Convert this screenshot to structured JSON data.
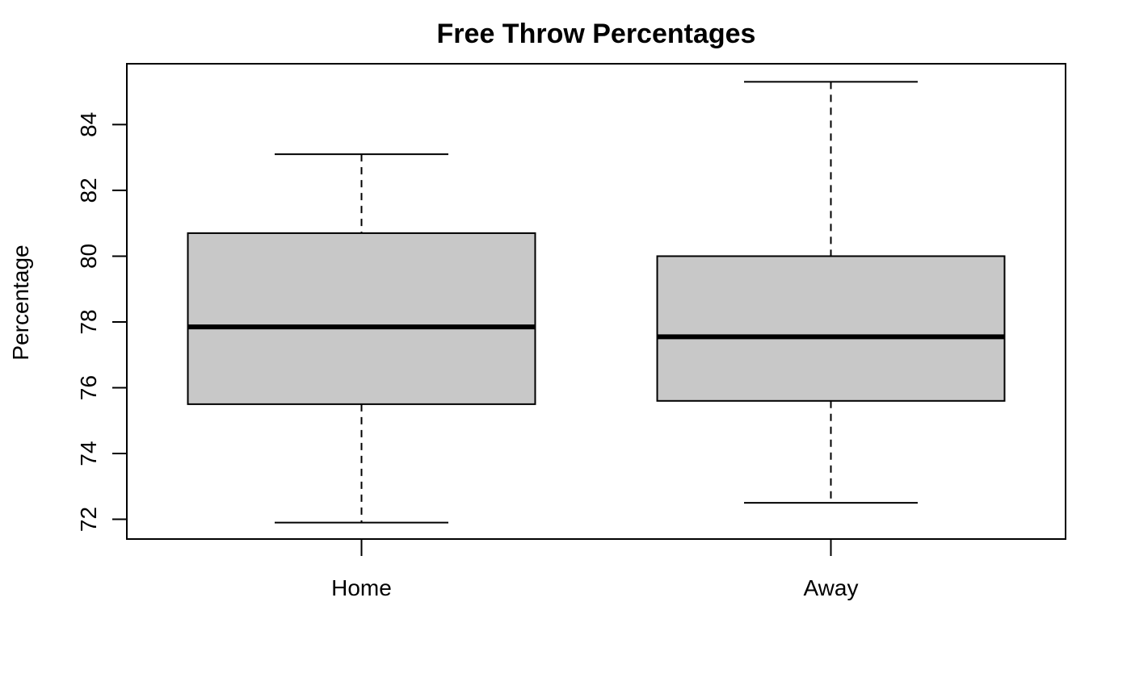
{
  "chart_data": {
    "type": "boxplot",
    "title": "Free Throw Percentages",
    "xlabel": "",
    "ylabel": "Percentage",
    "categories": [
      "Home",
      "Away"
    ],
    "series": [
      {
        "category": "Home",
        "min": 71.9,
        "q1": 75.5,
        "median": 77.85,
        "q3": 80.7,
        "max": 83.1
      },
      {
        "category": "Away",
        "min": 72.5,
        "q1": 75.6,
        "median": 77.55,
        "q3": 80.0,
        "max": 85.3
      }
    ],
    "yticks": [
      72,
      74,
      76,
      78,
      80,
      82,
      84
    ],
    "ylim": [
      71.4,
      85.85
    ],
    "grid": false,
    "legend": "none",
    "colors": {
      "box_fill": "#c8c8c8",
      "stroke": "#000000",
      "background": "#ffffff"
    }
  }
}
